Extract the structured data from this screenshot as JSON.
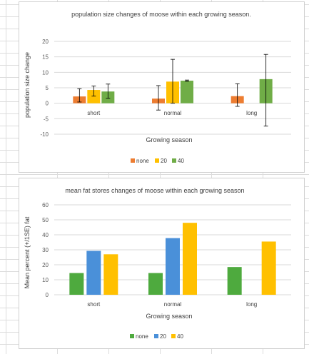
{
  "chart_data": [
    {
      "type": "bar",
      "title": "population size changes of moose  within each growing season.",
      "xlabel": "Growing season",
      "ylabel": "population size change",
      "categories": [
        "short",
        "normal",
        "long"
      ],
      "series": [
        {
          "name": "none",
          "color": "#ED7D31",
          "values": [
            2.2,
            1.5,
            2.3
          ],
          "err_low": [
            1.8,
            3.7,
            3.3
          ],
          "err_high": [
            2.5,
            4.2,
            4.0
          ]
        },
        {
          "name": "20",
          "color": "#FFC000",
          "values": [
            4.3,
            7.0,
            null
          ],
          "err_low": [
            2.0,
            7.0,
            null
          ],
          "err_high": [
            1.3,
            7.2,
            null
          ]
        },
        {
          "name": "40",
          "color": "#70AD47",
          "values": [
            3.8,
            7.3,
            7.8
          ],
          "err_low": [
            2.2,
            0.2,
            15.2
          ],
          "err_high": [
            2.4,
            0.2,
            8.0
          ]
        }
      ],
      "yticks": [
        20,
        15,
        10,
        5,
        0,
        -5,
        -10
      ],
      "ylim": [
        -10,
        20
      ],
      "grid": true,
      "legend": "bottom"
    },
    {
      "type": "bar",
      "title": "mean fat stores changes of moose within each growing season",
      "xlabel": "Growing season",
      "ylabel": "Mean percent (+/1SE) fat",
      "categories": [
        "short",
        "normal",
        "long"
      ],
      "series": [
        {
          "name": "none",
          "color": "#4EAA3E",
          "values": [
            14.5,
            14.5,
            18.5
          ]
        },
        {
          "name": "20",
          "color": "#4A90D9",
          "values": [
            29.3,
            37.8,
            null
          ]
        },
        {
          "name": "40",
          "color": "#FFC000",
          "values": [
            27,
            48,
            35.5
          ]
        }
      ],
      "yticks": [
        60,
        50,
        40,
        30,
        20,
        10,
        0
      ],
      "ylim": [
        0,
        60
      ],
      "grid": true,
      "legend": "bottom"
    }
  ]
}
